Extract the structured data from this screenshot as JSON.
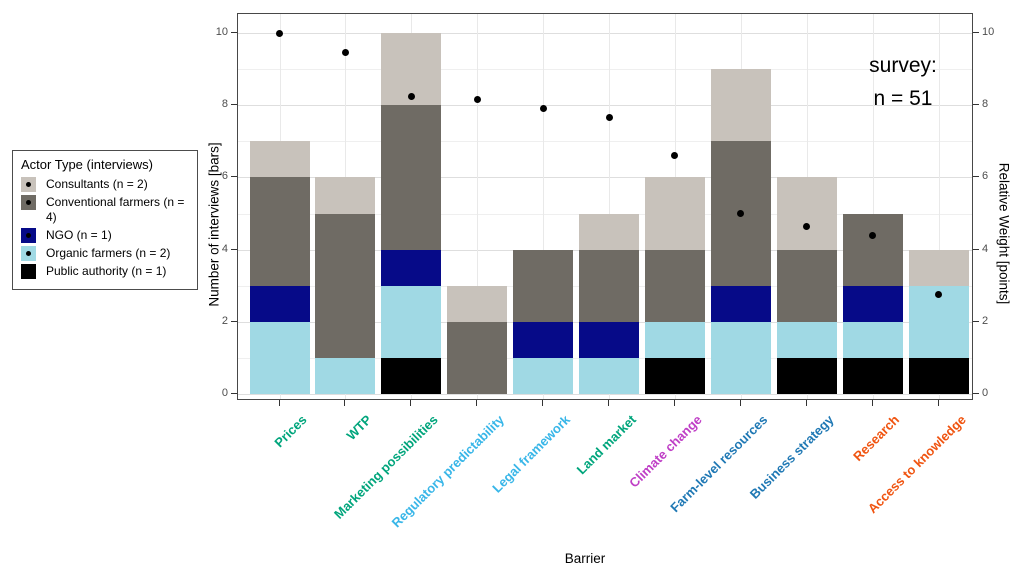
{
  "chart_data": {
    "type": "bar",
    "subtype": "stacked-bars-with-points-overlay",
    "title": "",
    "xlabel": "Barrier",
    "ylabel_left": "Number of interviews [bars]",
    "ylabel_right": "Relative Weight [points]",
    "ylim": [
      0,
      10
    ],
    "yticks_major": [
      0,
      2,
      4,
      6,
      8,
      10
    ],
    "yticks_minor": [
      1,
      3,
      5,
      7,
      9
    ],
    "grid": true,
    "annotation": {
      "line1": "survey:",
      "line2": "n = 51"
    },
    "categories": [
      "Prices",
      "WTP",
      "Marketing possibilities",
      "Regulatory predictability",
      "Legal framework",
      "Land market",
      "Climate change",
      "Farm-level resources",
      "Business strategy",
      "Research",
      "Access to knowledge"
    ],
    "category_label_colors": [
      "#00A57C",
      "#00A57C",
      "#00A57C",
      "#38B6E8",
      "#38B6E8",
      "#00A57C",
      "#BF3FC6",
      "#1F78B4",
      "#1F78B4",
      "#F05410",
      "#F05410"
    ],
    "series": [
      {
        "name": "Public authority (n = 1)",
        "color": "#000000",
        "values": [
          0,
          0,
          1,
          0,
          0,
          0,
          1,
          0,
          1,
          1,
          1
        ]
      },
      {
        "name": "Organic farmers (n = 2)",
        "color": "#A0D9E4",
        "values": [
          2,
          1,
          2,
          0,
          1,
          1,
          1,
          2,
          1,
          1,
          2
        ]
      },
      {
        "name": "NGO (n = 1)",
        "color": "#060A88",
        "values": [
          1,
          0,
          1,
          0,
          1,
          1,
          0,
          1,
          0,
          1,
          0
        ]
      },
      {
        "name": "Conventional farmers (n = 4)",
        "color": "#6F6B64",
        "values": [
          3,
          4,
          4,
          2,
          2,
          2,
          2,
          4,
          2,
          2,
          0
        ]
      },
      {
        "name": "Consultants (n = 2)",
        "color": "#C8C2BB",
        "values": [
          1,
          1,
          2,
          1,
          0,
          1,
          2,
          2,
          2,
          0,
          1
        ]
      }
    ],
    "points": [
      10,
      9.45,
      8.25,
      8.15,
      7.9,
      7.65,
      6.6,
      5.0,
      4.65,
      4.4,
      2.75
    ],
    "point_color": "#000000",
    "legend_position": "left"
  },
  "legend": {
    "title": "Actor Type (interviews)",
    "items": [
      {
        "label": "Consultants (n = 2)",
        "color": "#C8C2BB",
        "dot": true
      },
      {
        "label": "Conventional farmers (n = 4)",
        "color": "#6F6B64",
        "dot": true
      },
      {
        "label": "NGO (n = 1)",
        "color": "#060A88",
        "dot": true
      },
      {
        "label": "Organic farmers (n = 2)",
        "color": "#A0D9E4",
        "dot": true
      },
      {
        "label": "Public authority (n = 1)",
        "color": "#000000",
        "dot": false
      }
    ]
  }
}
